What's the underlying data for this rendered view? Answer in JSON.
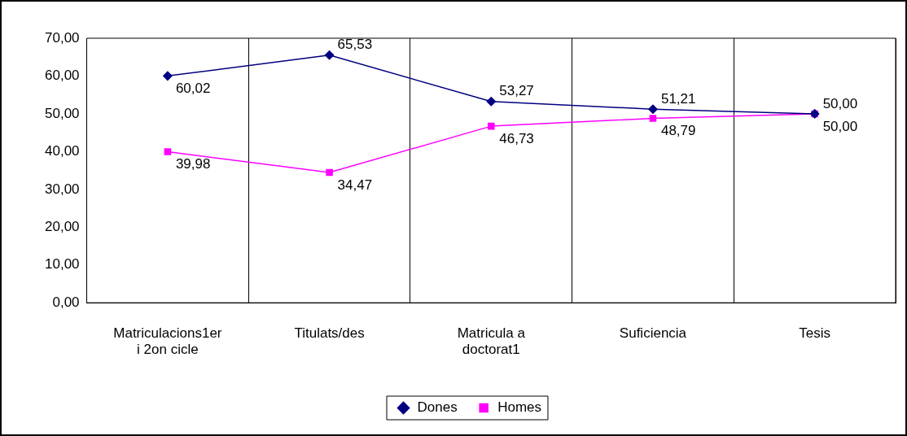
{
  "chart_data": {
    "type": "line",
    "categories": [
      "Matriculacions1er i 2on cicle",
      "Titulats/des",
      "Matricula a doctorat1",
      "Suficiencia",
      "Tesis"
    ],
    "series": [
      {
        "name": "Dones",
        "color": "#000080",
        "marker": "diamond",
        "values": [
          60.02,
          65.53,
          53.27,
          51.21,
          50.0
        ],
        "value_labels": [
          "60,02",
          "65,53",
          "53,27",
          "51,21",
          "50,00"
        ]
      },
      {
        "name": "Homes",
        "color": "#ff00ff",
        "marker": "square",
        "values": [
          39.98,
          34.47,
          46.73,
          48.79,
          50.0
        ],
        "value_labels": [
          "39,98",
          "34,47",
          "46,73",
          "48,79",
          "50,00"
        ]
      }
    ],
    "ylim": [
      0,
      70
    ],
    "yticks": [
      {
        "value": 0,
        "label": "0,00"
      },
      {
        "value": 10,
        "label": "10,00"
      },
      {
        "value": 20,
        "label": "20,00"
      },
      {
        "value": 30,
        "label": "30,00"
      },
      {
        "value": 40,
        "label": "40,00"
      },
      {
        "value": 50,
        "label": "50,00"
      },
      {
        "value": 60,
        "label": "60,00"
      },
      {
        "value": 70,
        "label": "70,00"
      }
    ],
    "grid": "x",
    "legend": "bottom",
    "line_style": "solid"
  }
}
